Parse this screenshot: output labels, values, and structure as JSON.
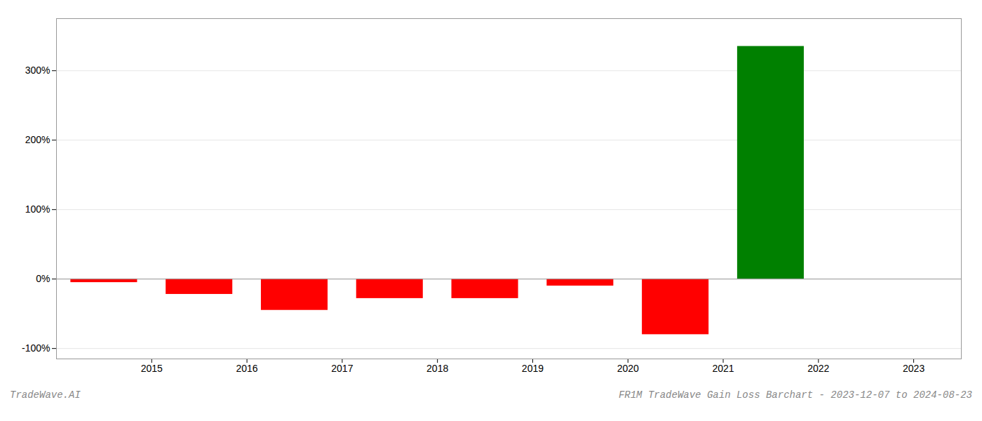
{
  "chart_data": {
    "type": "bar",
    "x": [
      2014.5,
      2015.5,
      2016.5,
      2017.5,
      2018.5,
      2019.5,
      2020.5,
      2021.5,
      2022.5
    ],
    "values": [
      -5,
      -22,
      -45,
      -28,
      -28,
      -10,
      -80,
      335,
      0
    ],
    "colors": [
      "#ff0000",
      "#ff0000",
      "#ff0000",
      "#ff0000",
      "#ff0000",
      "#ff0000",
      "#ff0000",
      "#008000",
      "#ffffff"
    ],
    "xlim": [
      2014.0,
      2023.5
    ],
    "xticks": [
      2015,
      2016,
      2017,
      2018,
      2019,
      2020,
      2021,
      2022,
      2023
    ],
    "ylim": [
      -115,
      375
    ],
    "yticks": [
      {
        "value": -100,
        "label": "-100%"
      },
      {
        "value": 0,
        "label": "0%"
      },
      {
        "value": 100,
        "label": "100%"
      },
      {
        "value": 200,
        "label": "200%"
      },
      {
        "value": 300,
        "label": "300%"
      }
    ],
    "grid": true,
    "annotations": [
      "TradeWave.AI",
      "FR1M TradeWave Gain Loss Barchart - 2023-12-07 to 2024-08-23"
    ]
  }
}
